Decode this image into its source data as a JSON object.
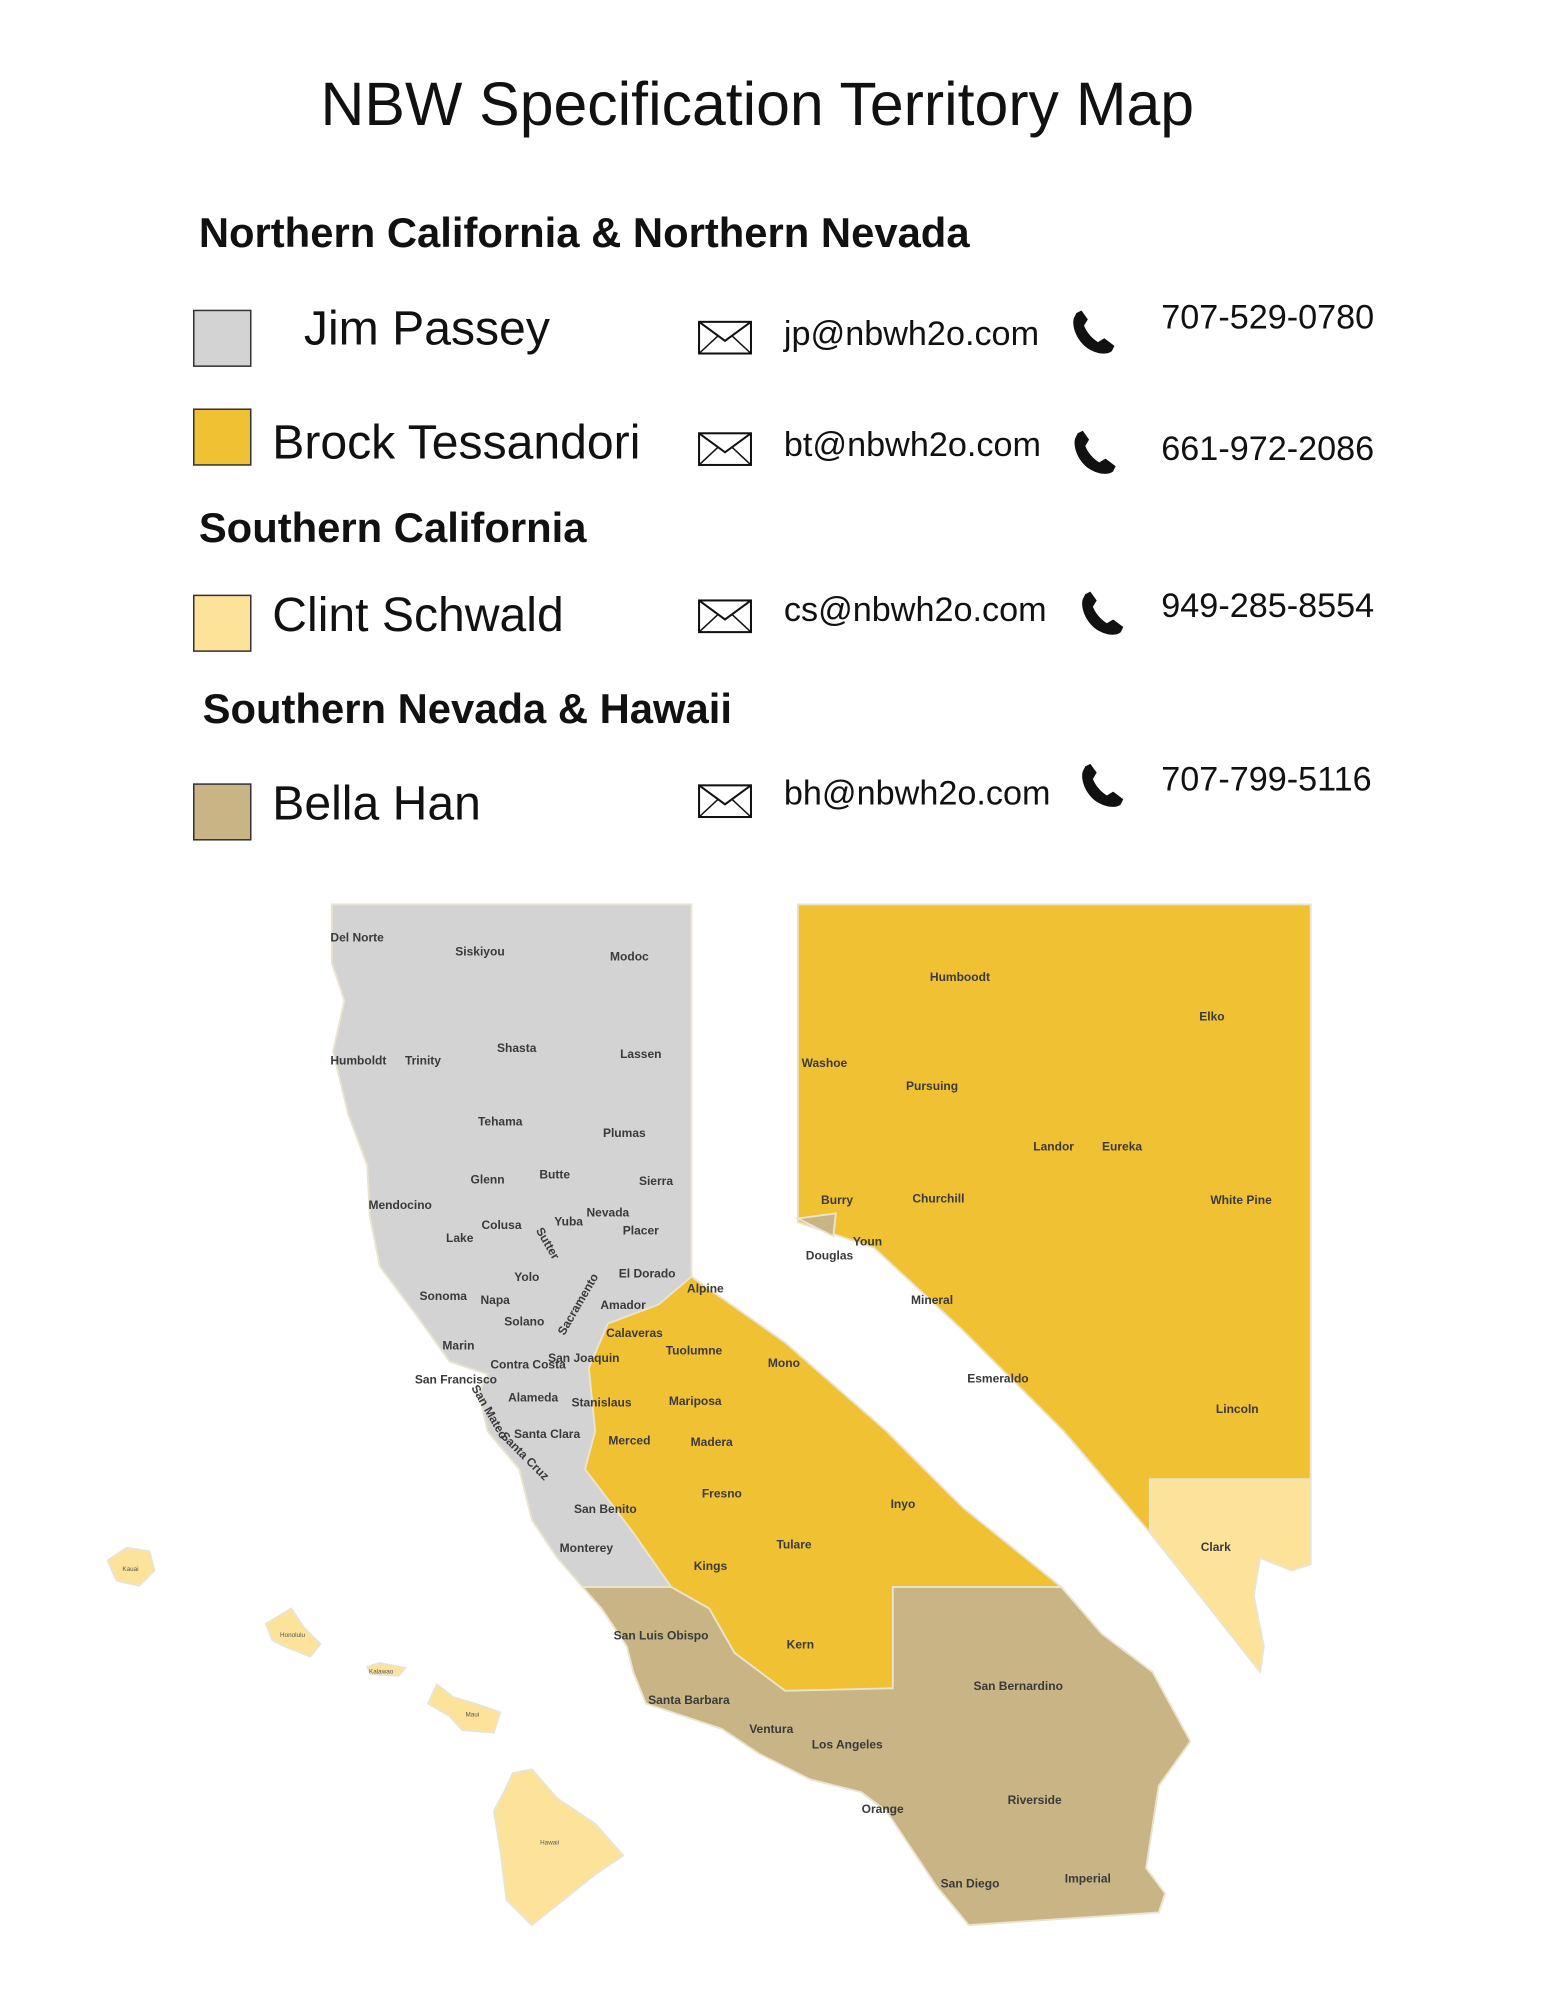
{
  "title": "NBW Specification Territory Map",
  "sections": [
    {
      "heading": "Northern California & Northern Nevada",
      "reps": [
        {
          "name": "Jim Passey",
          "email": "jp@nbwh2o.com",
          "phone": "707-529-0780",
          "color": "#d3d3d3"
        },
        {
          "name": "Brock Tessandori",
          "email": "bt@nbwh2o.com",
          "phone": "661-972-2086",
          "color": "#f0c132"
        }
      ]
    },
    {
      "heading": "Southern California",
      "reps": [
        {
          "name": "Clint Schwald",
          "email": "cs@nbwh2o.com",
          "phone": "949-285-8554",
          "color": "#fde39a"
        }
      ]
    },
    {
      "heading": "Southern Nevada & Hawaii",
      "reps": [
        {
          "name": "Bella Han",
          "email": "bh@nbwh2o.com",
          "phone": "707-799-5116",
          "color": "#c8b484"
        }
      ]
    }
  ],
  "map": {
    "california": [
      "Del Norte",
      "Siskiyou",
      "Modoc",
      "Humboldt",
      "Trinity",
      "Shasta",
      "Lassen",
      "Tehama",
      "Plumas",
      "Glenn",
      "Butte",
      "Sierra",
      "Mendocino",
      "Colusa",
      "Yuba",
      "Nevada",
      "Placer",
      "Lake",
      "Sutter",
      "Yolo",
      "El Dorado",
      "Sonoma",
      "Napa",
      "Sacramento",
      "Amador",
      "Alpine",
      "Solano",
      "Calaveras",
      "Marin",
      "Tuolumne",
      "Mono",
      "Contra Costa",
      "San Joaquin",
      "San Francisco",
      "Alameda",
      "Stanislaus",
      "Mariposa",
      "San Mateo",
      "Santa Clara",
      "Merced",
      "Madera",
      "Santa Cruz",
      "Fresno",
      "Inyo",
      "San Benito",
      "Tulare",
      "Monterey",
      "Kings",
      "San Luis Obispo",
      "Kern",
      "San Bernardino",
      "Santa Barbara",
      "Ventura",
      "Los Angeles",
      "Riverside",
      "Orange",
      "San Diego",
      "Imperial"
    ],
    "nevada": [
      "Humboodt",
      "Elko",
      "Washoe",
      "Pursuing",
      "Landor",
      "Eureka",
      "Burry",
      "Churchill",
      "White Pine",
      "Douglas",
      "Youn",
      "Mineral",
      "Esmeraldo",
      "Lincoln",
      "Clark"
    ],
    "hawaii": [
      "Kauai",
      "Honolulu",
      "Kalawao",
      "Maui",
      "Hawaii"
    ]
  }
}
